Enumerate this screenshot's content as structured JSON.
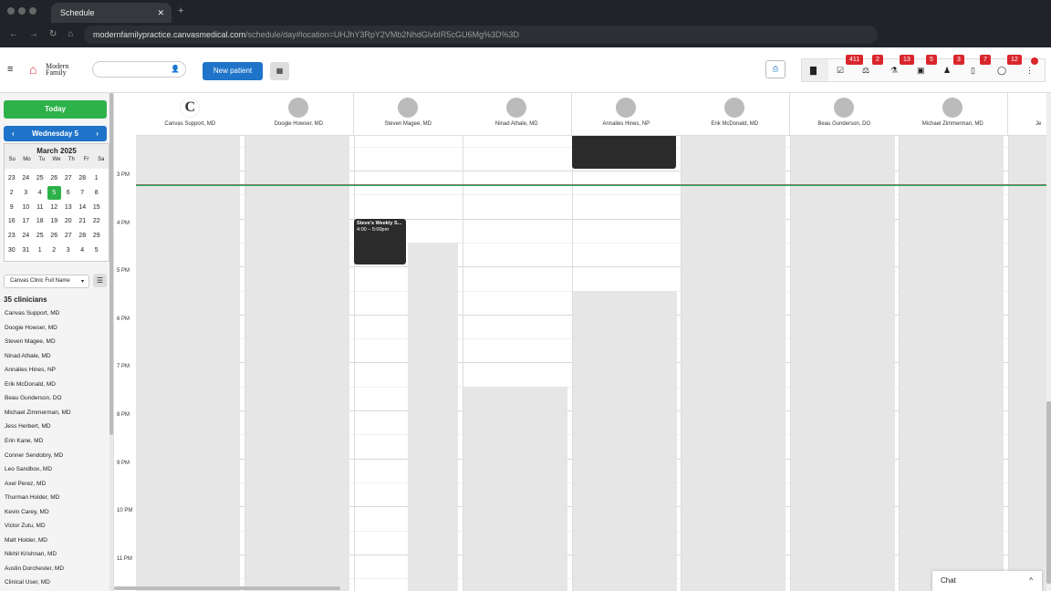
{
  "browser": {
    "tab_title": "Schedule",
    "url_host": "modernfamilypractice.canvasmedical.com",
    "url_path": "/schedule/day#location=UHJhY3RpY2VMb2NhdGlvbIR5cGU6Mg%3D%3D"
  },
  "app": {
    "logo_text": "Modern Family",
    "new_patient": "New patient",
    "search_placeholder": ""
  },
  "toolbar": {
    "badges": [
      "411",
      "2",
      "13",
      "5",
      "3",
      "7",
      "12"
    ],
    "icons": [
      "calendar-icon",
      "task-icon",
      "scale-icon",
      "lab-icon",
      "image-icon",
      "referral-icon",
      "document-icon",
      "message-icon",
      "more-icon"
    ]
  },
  "sidebar": {
    "today": "Today",
    "day_label": "Wednesday 5",
    "month": "March 2025",
    "weekdays": [
      "Su",
      "Mo",
      "Tu",
      "We",
      "Th",
      "Fr",
      "Sa"
    ],
    "weeks": [
      [
        "23",
        "24",
        "25",
        "26",
        "27",
        "28",
        "1"
      ],
      [
        "2",
        "3",
        "4",
        "5",
        "6",
        "7",
        "8"
      ],
      [
        "9",
        "10",
        "11",
        "12",
        "13",
        "14",
        "15"
      ],
      [
        "16",
        "17",
        "18",
        "19",
        "20",
        "21",
        "22"
      ],
      [
        "23",
        "24",
        "25",
        "26",
        "27",
        "28",
        "29"
      ],
      [
        "30",
        "31",
        "1",
        "2",
        "3",
        "4",
        "5"
      ]
    ],
    "selected_day": "5",
    "sort_select": "Canvas Clinic Full Name",
    "clinician_count": "35 clinicians",
    "clinicians": [
      "Canvas Support, MD",
      "Doogie Howser, MD",
      "Steven Magee, MD",
      "Ninad Athale, MD",
      "Annalies Hines, NP",
      "Erik McDonald, MD",
      "Beau Gunderson, DO",
      "Michael Zimmerman, MD",
      "Jess Herbert, MD",
      "Erin Kane, MD",
      "Conner Sendobry, MD",
      "Leo Sandbox, MD",
      "Axel Perez, MD",
      "Thurman Holder, MD",
      "Kevin Carey, MD",
      "Victor Zulu, MD",
      "Matt Holder, MD",
      "Nikhil Krishnan, MD",
      "Austin Dorchester, MD",
      "Clinical User, MD"
    ]
  },
  "columns": [
    "Canvas Support, MD",
    "Doogie Howser, MD",
    "Steven Magee, MD",
    "Ninad Athale, MD",
    "Annalies Hines, NP",
    "Erik McDonald, MD",
    "Beau Gunderson, DO",
    "Michael Zimmerman, MD",
    "Je"
  ],
  "hours": [
    "3 PM",
    "4 PM",
    "5 PM",
    "6 PM",
    "7 PM",
    "8 PM",
    "9 PM",
    "10 PM",
    "11 PM"
  ],
  "event": {
    "title": "Steve's Weekly S...",
    "time": "4:00 – 5:00pm"
  },
  "chat": {
    "label": "Chat"
  },
  "colors": {
    "accent": "#1f74c9",
    "today": "#2db24a",
    "badge": "#d9262c",
    "event": "#2b2b2b"
  }
}
